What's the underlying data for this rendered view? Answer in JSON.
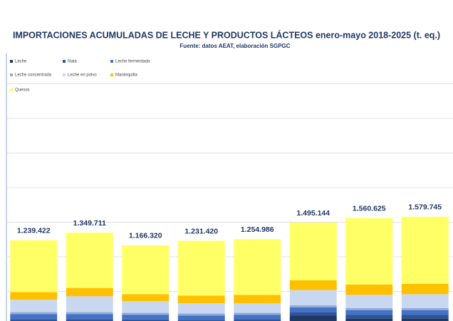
{
  "chart_data": {
    "type": "bar",
    "stacked": true,
    "title": "IMPORTACIONES ACUMULADAS DE LECHE Y PRODUCTOS LÁCTEOS enero-mayo 2018-2025 (t. eq.)",
    "subtitle": "Fuente: datos AEAT, elaboración SGPGC",
    "categories": [
      null,
      null,
      null,
      null,
      null,
      null,
      null,
      null
    ],
    "series": [
      {
        "name": "Leche",
        "color": "#1f3864",
        "values": [
          60000,
          60000,
          55000,
          50000,
          55000,
          150000,
          110000,
          110000
        ]
      },
      {
        "name": "Nata",
        "color": "#2f5597",
        "values": [
          40000,
          40000,
          40000,
          40000,
          45000,
          50000,
          50000,
          50000
        ]
      },
      {
        "name": "Leche fermentada",
        "color": "#4472c4",
        "values": [
          70000,
          70000,
          65000,
          60000,
          60000,
          70000,
          70000,
          70000
        ]
      },
      {
        "name": "Leche concentrada",
        "color": "#8faadc",
        "values": [
          30000,
          30000,
          30000,
          30000,
          30000,
          30000,
          30000,
          30000
        ]
      },
      {
        "name": "Leche en polvo",
        "color": "#c9d8f0",
        "values": [
          180000,
          230000,
          170000,
          150000,
          140000,
          220000,
          190000,
          200000
        ]
      },
      {
        "name": "Mantequilla",
        "color": "#ffc000",
        "values": [
          110000,
          120000,
          100000,
          110000,
          120000,
          140000,
          150000,
          150000
        ]
      },
      {
        "name": "Quesos",
        "color": "#ffff66",
        "values": [
          749422,
          799711,
          706320,
          791420,
          804986,
          835144,
          960625,
          969745
        ]
      }
    ],
    "totals": [
      1239422,
      1349711,
      1166320,
      1231420,
      1254986,
      1495144,
      1560625,
      1579745
    ],
    "total_labels": [
      "1.239.422",
      "1.349.711",
      "1.166.320",
      "1.231.420",
      "1.254.986",
      "1.495.144",
      "1.560.625",
      "1.579.745"
    ],
    "ylim": [
      0,
      4000000
    ],
    "yticks": [
      500000,
      1000000,
      1500000,
      2000000,
      2500000,
      3000000,
      3500000
    ],
    "grid": true,
    "legend": "top-left"
  }
}
